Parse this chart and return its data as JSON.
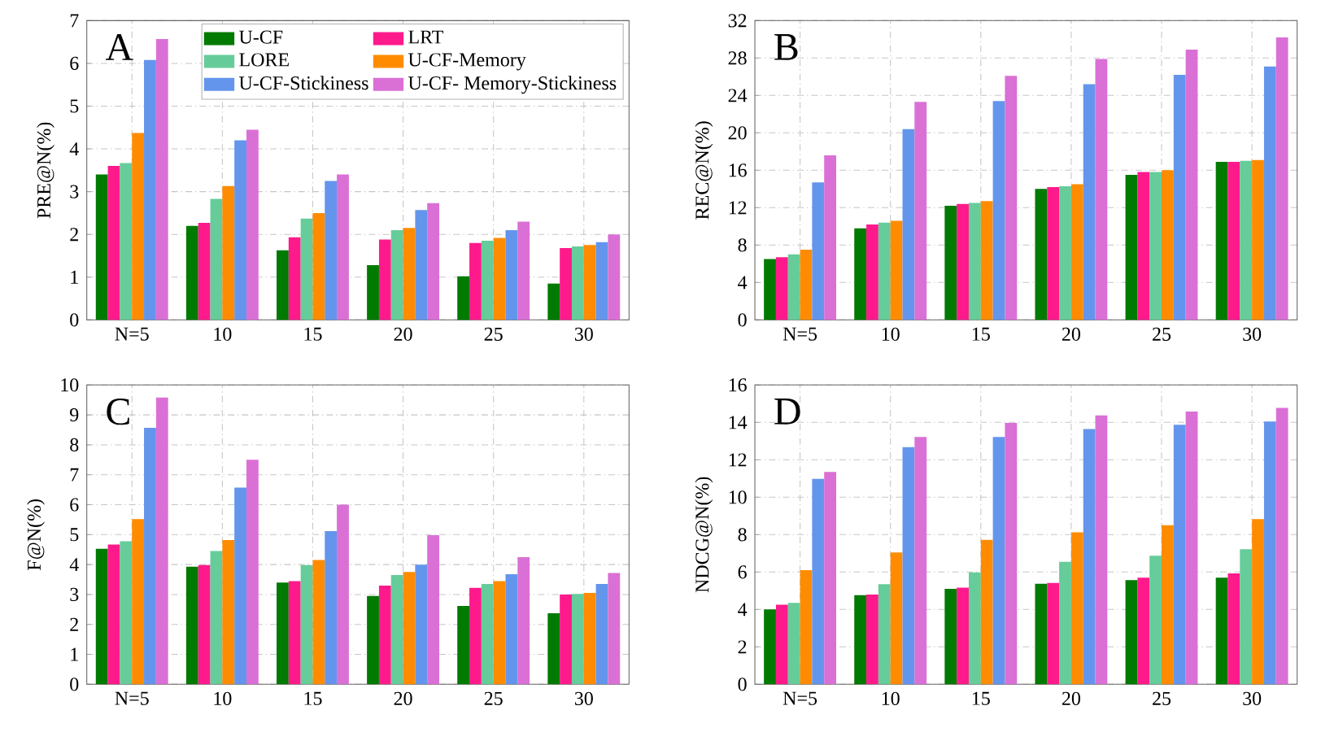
{
  "chart_data": [
    {
      "type": "bar",
      "ylabel": "PRE@N(%)",
      "annotations": [
        "A"
      ],
      "categories": [
        "N=5",
        "10",
        "15",
        "20",
        "25",
        "30"
      ],
      "ylim": [
        0,
        7
      ],
      "yticks": [
        0,
        1,
        2,
        3,
        4,
        5,
        6,
        7
      ],
      "grid": true,
      "legend": "top right",
      "series": [
        {
          "name": "U-CF",
          "color": "#007a00",
          "values": [
            3.4,
            2.2,
            1.63,
            1.28,
            1.02,
            0.85
          ]
        },
        {
          "name": "LRT",
          "color": "#ff1a8c",
          "values": [
            3.6,
            2.27,
            1.93,
            1.88,
            1.8,
            1.68
          ]
        },
        {
          "name": "LORE",
          "color": "#66cc99",
          "values": [
            3.67,
            2.83,
            2.37,
            2.1,
            1.85,
            1.72
          ]
        },
        {
          "name": "U-CF-Memory",
          "color": "#ff8c00",
          "values": [
            4.37,
            3.13,
            2.5,
            2.15,
            1.92,
            1.75
          ]
        },
        {
          "name": "U-CF-Stickiness",
          "color": "#6495ed",
          "values": [
            6.08,
            4.2,
            3.25,
            2.57,
            2.1,
            1.82
          ]
        },
        {
          "name": "U-CF- Memory-Stickiness",
          "color": "#da70d6",
          "values": [
            6.57,
            4.45,
            3.4,
            2.73,
            2.3,
            2.0
          ]
        }
      ]
    },
    {
      "type": "bar",
      "ylabel": "REC@N(%)",
      "annotations": [
        "B"
      ],
      "categories": [
        "N=5",
        "10",
        "15",
        "20",
        "25",
        "30"
      ],
      "ylim": [
        0,
        32
      ],
      "yticks": [
        0,
        4,
        8,
        12,
        16,
        20,
        24,
        28,
        32
      ],
      "grid": true,
      "series": [
        {
          "color": "#007a00",
          "values": [
            6.5,
            9.8,
            12.2,
            14.0,
            15.5,
            16.9
          ]
        },
        {
          "color": "#ff1a8c",
          "values": [
            6.7,
            10.2,
            12.4,
            14.2,
            15.8,
            16.9
          ]
        },
        {
          "color": "#66cc99",
          "values": [
            7.0,
            10.4,
            12.5,
            14.3,
            15.8,
            17.0
          ]
        },
        {
          "color": "#ff8c00",
          "values": [
            7.5,
            10.6,
            12.7,
            14.5,
            16.0,
            17.1
          ]
        },
        {
          "color": "#6495ed",
          "values": [
            14.7,
            20.4,
            23.4,
            25.2,
            26.2,
            27.1
          ]
        },
        {
          "color": "#da70d6",
          "values": [
            17.6,
            23.3,
            26.1,
            27.9,
            28.9,
            30.2
          ]
        }
      ]
    },
    {
      "type": "bar",
      "ylabel": "F@N(%)",
      "annotations": [
        "C"
      ],
      "categories": [
        "N=5",
        "10",
        "15",
        "20",
        "25",
        "30"
      ],
      "ylim": [
        0,
        10
      ],
      "yticks": [
        0,
        1,
        2,
        3,
        4,
        5,
        6,
        7,
        8,
        9,
        10
      ],
      "grid": true,
      "series": [
        {
          "color": "#007a00",
          "values": [
            4.53,
            3.93,
            3.4,
            2.95,
            2.62,
            2.37
          ]
        },
        {
          "color": "#ff1a8c",
          "values": [
            4.67,
            3.98,
            3.45,
            3.3,
            3.22,
            3.0
          ]
        },
        {
          "color": "#66cc99",
          "values": [
            4.78,
            4.45,
            3.98,
            3.65,
            3.35,
            3.02
          ]
        },
        {
          "color": "#ff8c00",
          "values": [
            5.52,
            4.82,
            4.15,
            3.75,
            3.45,
            3.05
          ]
        },
        {
          "color": "#6495ed",
          "values": [
            8.57,
            6.57,
            5.12,
            4.0,
            3.68,
            3.35
          ]
        },
        {
          "color": "#da70d6",
          "values": [
            9.58,
            7.5,
            6.0,
            4.98,
            4.25,
            3.72
          ]
        }
      ]
    },
    {
      "type": "bar",
      "ylabel": "NDCG@N(%)",
      "annotations": [
        "D"
      ],
      "categories": [
        "N=5",
        "10",
        "15",
        "20",
        "25",
        "30"
      ],
      "ylim": [
        0,
        16
      ],
      "yticks": [
        0,
        2,
        4,
        6,
        8,
        10,
        12,
        14,
        16
      ],
      "grid": true,
      "series": [
        {
          "color": "#007a00",
          "values": [
            4.0,
            4.77,
            5.1,
            5.37,
            5.57,
            5.7
          ]
        },
        {
          "color": "#ff1a8c",
          "values": [
            4.25,
            4.8,
            5.17,
            5.42,
            5.7,
            5.93
          ]
        },
        {
          "color": "#66cc99",
          "values": [
            4.35,
            5.35,
            5.98,
            6.55,
            6.87,
            7.22
          ]
        },
        {
          "color": "#ff8c00",
          "values": [
            6.1,
            7.05,
            7.72,
            8.12,
            8.5,
            8.83
          ]
        },
        {
          "color": "#6495ed",
          "values": [
            10.98,
            12.68,
            13.22,
            13.65,
            13.87,
            14.05
          ]
        },
        {
          "color": "#da70d6",
          "values": [
            11.35,
            13.22,
            13.97,
            14.37,
            14.58,
            14.78
          ]
        }
      ]
    }
  ]
}
